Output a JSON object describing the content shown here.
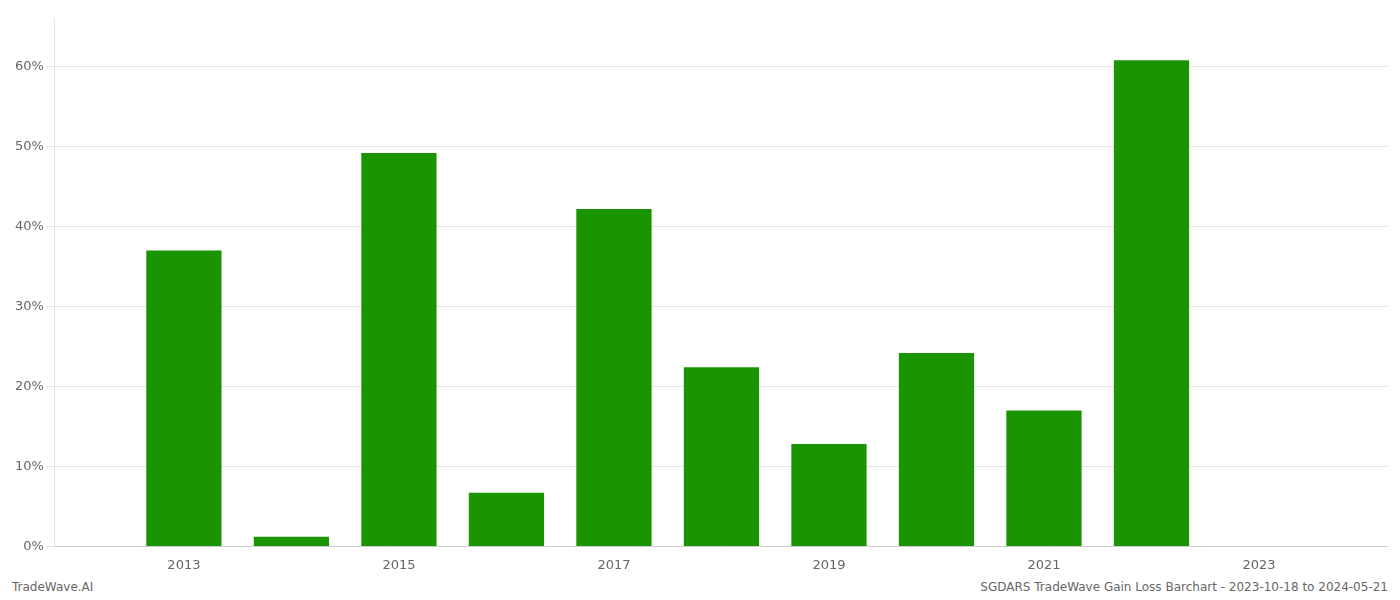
{
  "chart_data": {
    "type": "bar",
    "x": [
      2013,
      2014,
      2015,
      2016,
      2017,
      2018,
      2019,
      2020,
      2021,
      2022
    ],
    "values": [
      37.0,
      1.2,
      49.2,
      6.7,
      42.2,
      22.4,
      12.8,
      24.2,
      17.0,
      60.8
    ],
    "color": "#1a9400",
    "xlim": [
      2011.8,
      2024.2
    ],
    "xticks": [
      2013,
      2015,
      2017,
      2019,
      2021,
      2023
    ],
    "ylim": [
      0,
      66
    ],
    "yticks": [
      {
        "value": 0,
        "label": "0%"
      },
      {
        "value": 10,
        "label": "10%"
      },
      {
        "value": 20,
        "label": "20%"
      },
      {
        "value": 30,
        "label": "30%"
      },
      {
        "value": 40,
        "label": "40%"
      },
      {
        "value": 50,
        "label": "50%"
      },
      {
        "value": 60,
        "label": "60%"
      }
    ],
    "grid": "y",
    "annotations": [
      "TradeWave.AI",
      "SGDARS TradeWave Gain Loss Barchart - 2023-10-18 to 2024-05-21"
    ]
  }
}
